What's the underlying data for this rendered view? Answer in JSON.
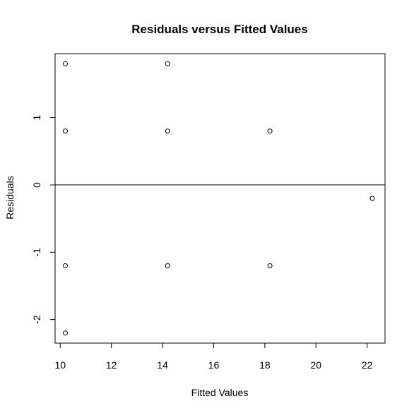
{
  "chart_data": {
    "type": "scatter",
    "title": "Residuals versus Fitted Values",
    "xlabel": "Fitted Values",
    "ylabel": "Residuals",
    "xlim": [
      9.8,
      22.7
    ],
    "ylim": [
      -2.35,
      1.95
    ],
    "xticks": [
      10,
      12,
      14,
      16,
      18,
      20,
      22
    ],
    "yticks": [
      -2,
      -1,
      0,
      1
    ],
    "hline": 0,
    "grid": false,
    "points": [
      {
        "x": 10.2,
        "y": 1.8
      },
      {
        "x": 14.2,
        "y": 1.8
      },
      {
        "x": 10.2,
        "y": 0.8
      },
      {
        "x": 14.2,
        "y": 0.8
      },
      {
        "x": 18.2,
        "y": 0.8
      },
      {
        "x": 22.2,
        "y": -0.2
      },
      {
        "x": 10.2,
        "y": -1.2
      },
      {
        "x": 14.2,
        "y": -1.2
      },
      {
        "x": 18.2,
        "y": -1.2
      },
      {
        "x": 10.2,
        "y": -2.2
      }
    ]
  }
}
